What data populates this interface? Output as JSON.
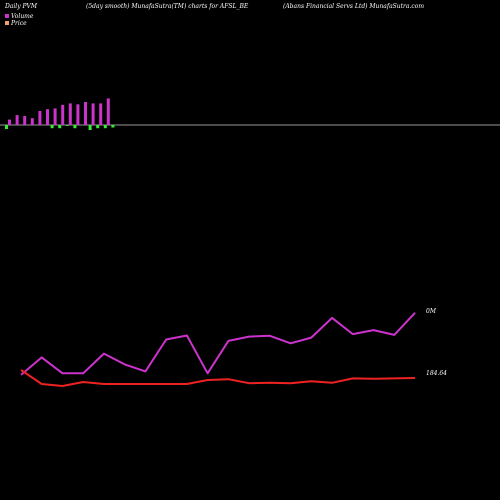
{
  "header": {
    "left": "Daily PVM",
    "center": "(5day smooth) MunafaSutra(TM) charts for AFSL_BE",
    "right": "(Abans Financial Servs Ltd) MunafaSutra.com"
  },
  "legend": [
    {
      "label": "Volume",
      "color": "#cc33cc"
    },
    {
      "label": "Price",
      "color": "#f0a070"
    }
  ],
  "chart_data": {
    "type": "line",
    "volume_bars": {
      "up_color": "#cc33cc",
      "down_color": "#33ee33",
      "up": [
        0.3,
        0.55,
        0.5,
        0.38,
        0.78,
        0.88,
        0.92,
        1.12,
        1.2,
        1.15,
        1.28,
        1.2,
        1.2,
        1.48
      ],
      "down": [
        0.22,
        0,
        0,
        0,
        0,
        0,
        0.18,
        0.18,
        0.05,
        0.18,
        0,
        0.28,
        0.18,
        0.18,
        0.14
      ]
    },
    "series": [
      {
        "color": "#cc33cc",
        "values": [
          0.3,
          0.95,
          0.36,
          0.36,
          1.09,
          0.69,
          0.43,
          1.61,
          1.76,
          0.36,
          1.56,
          1.72,
          1.75,
          1.47,
          1.68,
          2.41,
          1.81,
          1.96,
          1.78,
          2.6
        ],
        "end_label": "0M"
      },
      {
        "color": "#ee2222",
        "values": [
          184.35,
          184.0,
          183.95,
          184.05,
          184.0,
          184.0,
          184.0,
          184.0,
          184.0,
          184.1,
          184.12,
          184.02,
          184.03,
          184.02,
          184.07,
          184.03,
          184.14,
          184.13,
          184.14,
          184.15
        ],
        "end_label": "184.64"
      }
    ]
  }
}
